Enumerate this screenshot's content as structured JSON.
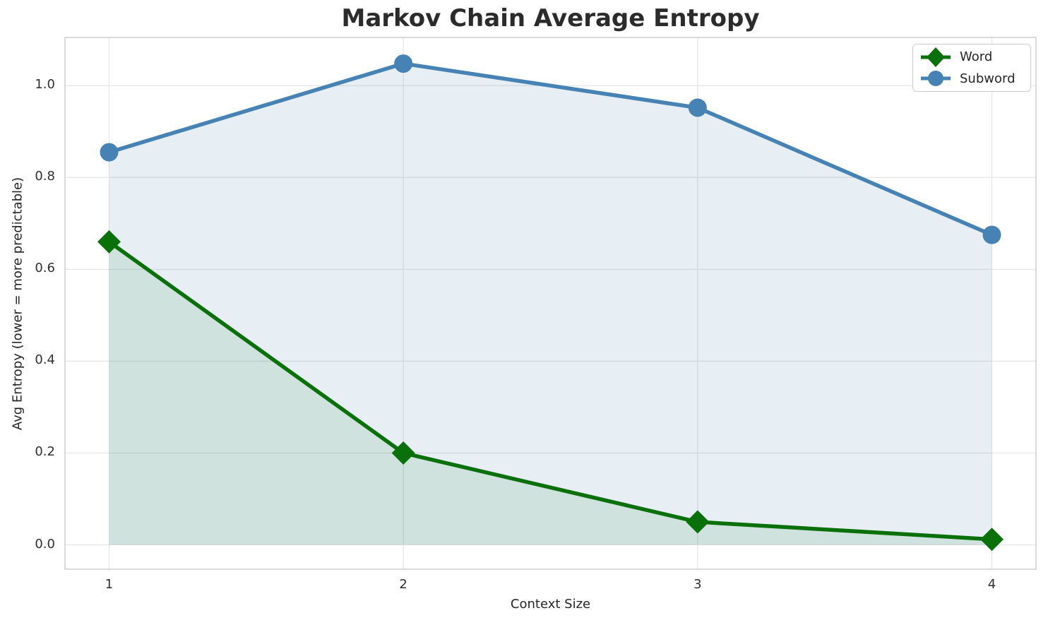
{
  "figure": {
    "title": "Markov Chain Average Entropy"
  },
  "chart_data": {
    "type": "line",
    "title": "Markov Chain Average Entropy",
    "xlabel": "Context Size",
    "ylabel": "Avg Entropy (lower = more predictable)",
    "x": [
      1,
      2,
      3,
      4
    ],
    "x_ticks": [
      "1",
      "2",
      "3",
      "4"
    ],
    "y_ticks": [
      "0.0",
      "0.2",
      "0.4",
      "0.6",
      "0.8",
      "1.0"
    ],
    "y_tick_values": [
      0.0,
      0.2,
      0.4,
      0.6,
      0.8,
      1.0
    ],
    "xlim": [
      0.85,
      4.15
    ],
    "ylim": [
      -0.053,
      1.105
    ],
    "grid": true,
    "legend_position": "upper right",
    "area_fill_baseline": 0.0,
    "series": [
      {
        "name": "Word",
        "values": [
          0.66,
          0.2,
          0.05,
          0.012
        ],
        "color": "#0a700a",
        "marker": "diamond",
        "fill": "rgba(0,110,0,0.10)"
      },
      {
        "name": "Subword",
        "values": [
          0.855,
          1.048,
          0.952,
          0.675
        ],
        "color": "#4682b4",
        "marker": "circle",
        "fill": "rgba(70,130,180,0.13)"
      }
    ]
  },
  "legend": {
    "items": [
      {
        "label": "Word"
      },
      {
        "label": "Subword"
      }
    ]
  },
  "colors": {
    "grid": "#e6e6e6",
    "spine": "#cdcdcd",
    "title_text": "#2b2b2b",
    "tick_text": "#303030",
    "label_text": "#262626"
  }
}
